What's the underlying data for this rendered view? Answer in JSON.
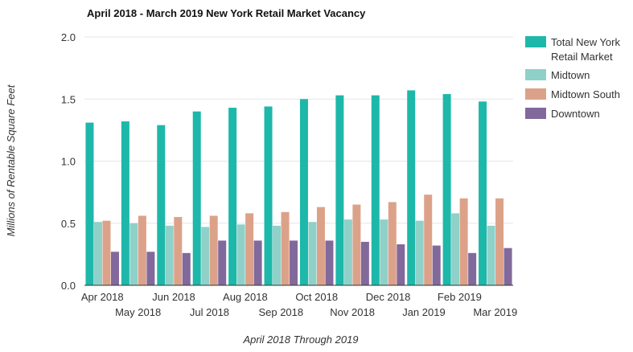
{
  "chart_data": {
    "type": "bar",
    "title": "April 2018 - March 2019 New York Retail Market Vacancy",
    "xlabel": "April 2018 Through 2019",
    "ylabel": "Millions of Rentable Square Feet",
    "ylim": [
      0,
      2.0
    ],
    "yticks": [
      "0.0",
      "0.5",
      "1.0",
      "1.5",
      "2.0"
    ],
    "ytick_values": [
      0,
      0.5,
      1.0,
      1.5,
      2.0
    ],
    "grid": true,
    "legend_position": "right",
    "categories": [
      "Apr 2018",
      "May 2018",
      "Jun 2018",
      "Jul 2018",
      "Aug 2018",
      "Sep 2018",
      "Oct 2018",
      "Nov 2018",
      "Dec 2018",
      "Jan 2019",
      "Feb 2019",
      "Mar 2019"
    ],
    "series": [
      {
        "name": "Total New York Retail Market",
        "legend_lines": [
          "Total New York",
          "Retail Market"
        ],
        "color": "#1db8a9",
        "values": [
          1.31,
          1.32,
          1.29,
          1.4,
          1.43,
          1.44,
          1.5,
          1.53,
          1.53,
          1.57,
          1.54,
          1.48
        ]
      },
      {
        "name": "Midtown",
        "legend_lines": [
          "Midtown"
        ],
        "color": "#8fd1c9",
        "values": [
          0.51,
          0.5,
          0.48,
          0.47,
          0.49,
          0.48,
          0.51,
          0.53,
          0.53,
          0.52,
          0.58,
          0.48
        ]
      },
      {
        "name": "Midtown South",
        "legend_lines": [
          "Midtown South"
        ],
        "color": "#dca289",
        "values": [
          0.52,
          0.56,
          0.55,
          0.56,
          0.58,
          0.59,
          0.63,
          0.65,
          0.67,
          0.73,
          0.7,
          0.7
        ]
      },
      {
        "name": "Downtown",
        "legend_lines": [
          "Downtown"
        ],
        "color": "#82699b",
        "values": [
          0.27,
          0.27,
          0.26,
          0.36,
          0.36,
          0.36,
          0.36,
          0.35,
          0.33,
          0.32,
          0.26,
          0.3
        ]
      }
    ]
  }
}
